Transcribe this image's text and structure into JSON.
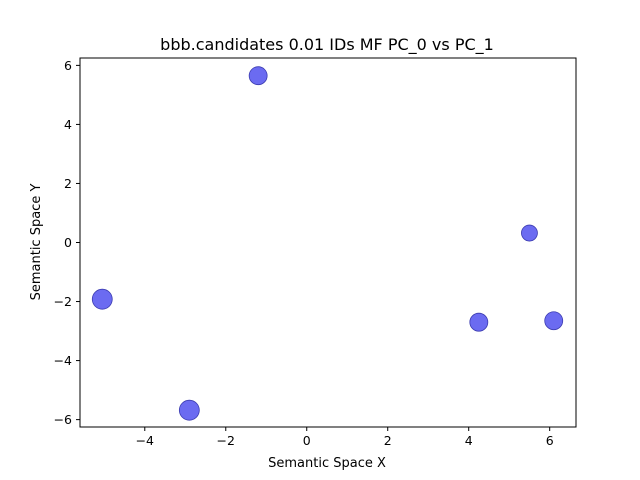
{
  "chart_data": {
    "type": "scatter",
    "title": "bbb.candidates 0.01 IDs MF PC_0 vs PC_1",
    "xlabel": "Semantic Space X",
    "ylabel": "Semantic Space Y",
    "xlim": [
      -5.6,
      6.65
    ],
    "ylim": [
      -6.25,
      6.25
    ],
    "xticks": [
      -4,
      -2,
      0,
      2,
      4,
      6
    ],
    "yticks": [
      -6,
      -4,
      -2,
      0,
      2,
      4,
      6
    ],
    "grid": false,
    "point_color": "#5b5bf0",
    "point_edge": "#3b3bb0",
    "points": [
      {
        "x": -1.2,
        "y": 5.65,
        "size": 9
      },
      {
        "x": 5.5,
        "y": 0.32,
        "size": 8
      },
      {
        "x": -5.05,
        "y": -1.92,
        "size": 10
      },
      {
        "x": 4.25,
        "y": -2.7,
        "size": 9
      },
      {
        "x": 6.1,
        "y": -2.65,
        "size": 9
      },
      {
        "x": -2.9,
        "y": -5.68,
        "size": 10
      }
    ]
  }
}
